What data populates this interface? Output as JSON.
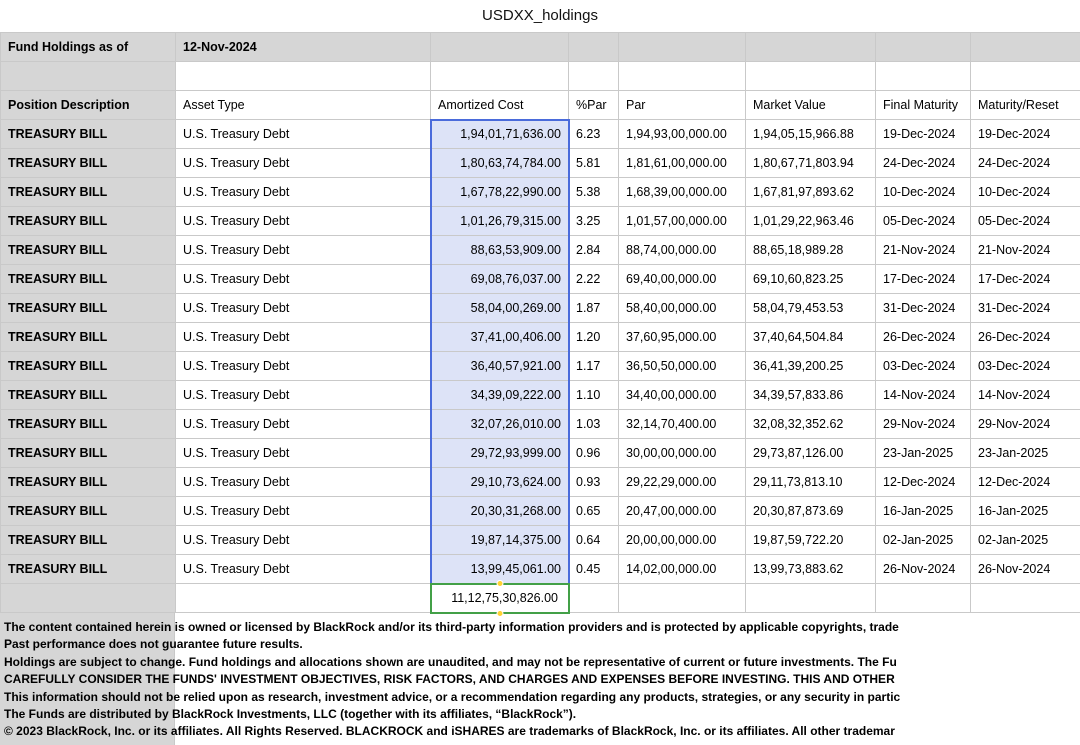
{
  "title": "USDXX_holdings",
  "meta": {
    "label": "Fund Holdings as of",
    "date": "12-Nov-2024"
  },
  "table": {
    "columns": [
      "Position Description",
      "Asset Type",
      "Amortized Cost",
      "%Par",
      "Par",
      "Market Value",
      "Final Maturity",
      "Maturity/Reset"
    ],
    "rows": [
      {
        "position": "TREASURY BILL",
        "asset_type": "U.S. Treasury Debt",
        "amortized_cost": "1,94,01,71,636.00",
        "pct_par": "6.23",
        "par": "1,94,93,00,000.00",
        "market_value": "1,94,05,15,966.88",
        "final_maturity": "19-Dec-2024",
        "maturity_reset": "19-Dec-2024"
      },
      {
        "position": "TREASURY BILL",
        "asset_type": "U.S. Treasury Debt",
        "amortized_cost": "1,80,63,74,784.00",
        "pct_par": "5.81",
        "par": "1,81,61,00,000.00",
        "market_value": "1,80,67,71,803.94",
        "final_maturity": "24-Dec-2024",
        "maturity_reset": "24-Dec-2024"
      },
      {
        "position": "TREASURY BILL",
        "asset_type": "U.S. Treasury Debt",
        "amortized_cost": "1,67,78,22,990.00",
        "pct_par": "5.38",
        "par": "1,68,39,00,000.00",
        "market_value": "1,67,81,97,893.62",
        "final_maturity": "10-Dec-2024",
        "maturity_reset": "10-Dec-2024"
      },
      {
        "position": "TREASURY BILL",
        "asset_type": "U.S. Treasury Debt",
        "amortized_cost": "1,01,26,79,315.00",
        "pct_par": "3.25",
        "par": "1,01,57,00,000.00",
        "market_value": "1,01,29,22,963.46",
        "final_maturity": "05-Dec-2024",
        "maturity_reset": "05-Dec-2024"
      },
      {
        "position": "TREASURY BILL",
        "asset_type": "U.S. Treasury Debt",
        "amortized_cost": "88,63,53,909.00",
        "pct_par": "2.84",
        "par": "88,74,00,000.00",
        "market_value": "88,65,18,989.28",
        "final_maturity": "21-Nov-2024",
        "maturity_reset": "21-Nov-2024"
      },
      {
        "position": "TREASURY BILL",
        "asset_type": "U.S. Treasury Debt",
        "amortized_cost": "69,08,76,037.00",
        "pct_par": "2.22",
        "par": "69,40,00,000.00",
        "market_value": "69,10,60,823.25",
        "final_maturity": "17-Dec-2024",
        "maturity_reset": "17-Dec-2024"
      },
      {
        "position": "TREASURY BILL",
        "asset_type": "U.S. Treasury Debt",
        "amortized_cost": "58,04,00,269.00",
        "pct_par": "1.87",
        "par": "58,40,00,000.00",
        "market_value": "58,04,79,453.53",
        "final_maturity": "31-Dec-2024",
        "maturity_reset": "31-Dec-2024"
      },
      {
        "position": "TREASURY BILL",
        "asset_type": "U.S. Treasury Debt",
        "amortized_cost": "37,41,00,406.00",
        "pct_par": "1.20",
        "par": "37,60,95,000.00",
        "market_value": "37,40,64,504.84",
        "final_maturity": "26-Dec-2024",
        "maturity_reset": "26-Dec-2024"
      },
      {
        "position": "TREASURY BILL",
        "asset_type": "U.S. Treasury Debt",
        "amortized_cost": "36,40,57,921.00",
        "pct_par": "1.17",
        "par": "36,50,50,000.00",
        "market_value": "36,41,39,200.25",
        "final_maturity": "03-Dec-2024",
        "maturity_reset": "03-Dec-2024"
      },
      {
        "position": "TREASURY BILL",
        "asset_type": "U.S. Treasury Debt",
        "amortized_cost": "34,39,09,222.00",
        "pct_par": "1.10",
        "par": "34,40,00,000.00",
        "market_value": "34,39,57,833.86",
        "final_maturity": "14-Nov-2024",
        "maturity_reset": "14-Nov-2024"
      },
      {
        "position": "TREASURY BILL",
        "asset_type": "U.S. Treasury Debt",
        "amortized_cost": "32,07,26,010.00",
        "pct_par": "1.03",
        "par": "32,14,70,400.00",
        "market_value": "32,08,32,352.62",
        "final_maturity": "29-Nov-2024",
        "maturity_reset": "29-Nov-2024"
      },
      {
        "position": "TREASURY BILL",
        "asset_type": "U.S. Treasury Debt",
        "amortized_cost": "29,72,93,999.00",
        "pct_par": "0.96",
        "par": "30,00,00,000.00",
        "market_value": "29,73,87,126.00",
        "final_maturity": "23-Jan-2025",
        "maturity_reset": "23-Jan-2025"
      },
      {
        "position": "TREASURY BILL",
        "asset_type": "U.S. Treasury Debt",
        "amortized_cost": "29,10,73,624.00",
        "pct_par": "0.93",
        "par": "29,22,29,000.00",
        "market_value": "29,11,73,813.10",
        "final_maturity": "12-Dec-2024",
        "maturity_reset": "12-Dec-2024"
      },
      {
        "position": "TREASURY BILL",
        "asset_type": "U.S. Treasury Debt",
        "amortized_cost": "20,30,31,268.00",
        "pct_par": "0.65",
        "par": "20,47,00,000.00",
        "market_value": "20,30,87,873.69",
        "final_maturity": "16-Jan-2025",
        "maturity_reset": "16-Jan-2025"
      },
      {
        "position": "TREASURY BILL",
        "asset_type": "U.S. Treasury Debt",
        "amortized_cost": "19,87,14,375.00",
        "pct_par": "0.64",
        "par": "20,00,00,000.00",
        "market_value": "19,87,59,722.20",
        "final_maturity": "02-Jan-2025",
        "maturity_reset": "02-Jan-2025"
      },
      {
        "position": "TREASURY BILL",
        "asset_type": "U.S. Treasury Debt",
        "amortized_cost": "13,99,45,061.00",
        "pct_par": "0.45",
        "par": "14,02,00,000.00",
        "market_value": "13,99,73,883.62",
        "final_maturity": "26-Nov-2024",
        "maturity_reset": "26-Nov-2024"
      }
    ],
    "total_amortized_cost": "11,12,75,30,826.00"
  },
  "footer": {
    "lines": [
      "The content contained herein is owned or licensed by BlackRock and/or its third-party information providers and is protected by applicable copyrights, trade",
      "Past performance does not guarantee future results.",
      "Holdings are subject to change. Fund holdings and allocations shown are unaudited, and may not be representative of current or future investments. The Fu",
      "CAREFULLY CONSIDER THE FUNDS' INVESTMENT OBJECTIVES, RISK FACTORS, AND CHARGES AND EXPENSES BEFORE INVESTING. THIS AND OTHER",
      "This information should not be relied upon as research, investment advice, or a recommendation regarding any products, strategies, or any security in partic",
      "The Funds are distributed by BlackRock Investments, LLC (together with its affiliates, “BlackRock”).",
      "© 2023 BlackRock, Inc. or its affiliates. All Rights Reserved. BLACKROCK and iSHARES are trademarks of BlackRock, Inc. or its affiliates. All other trademar"
    ]
  },
  "colors": {
    "header-gray": "#d6d6d6",
    "grid-line": "#c9c9c9",
    "selection-fill": "#dde3f7",
    "selection-border": "#4a6bdb",
    "sum-border": "#43a047",
    "handle-yellow": "#ffd234"
  }
}
